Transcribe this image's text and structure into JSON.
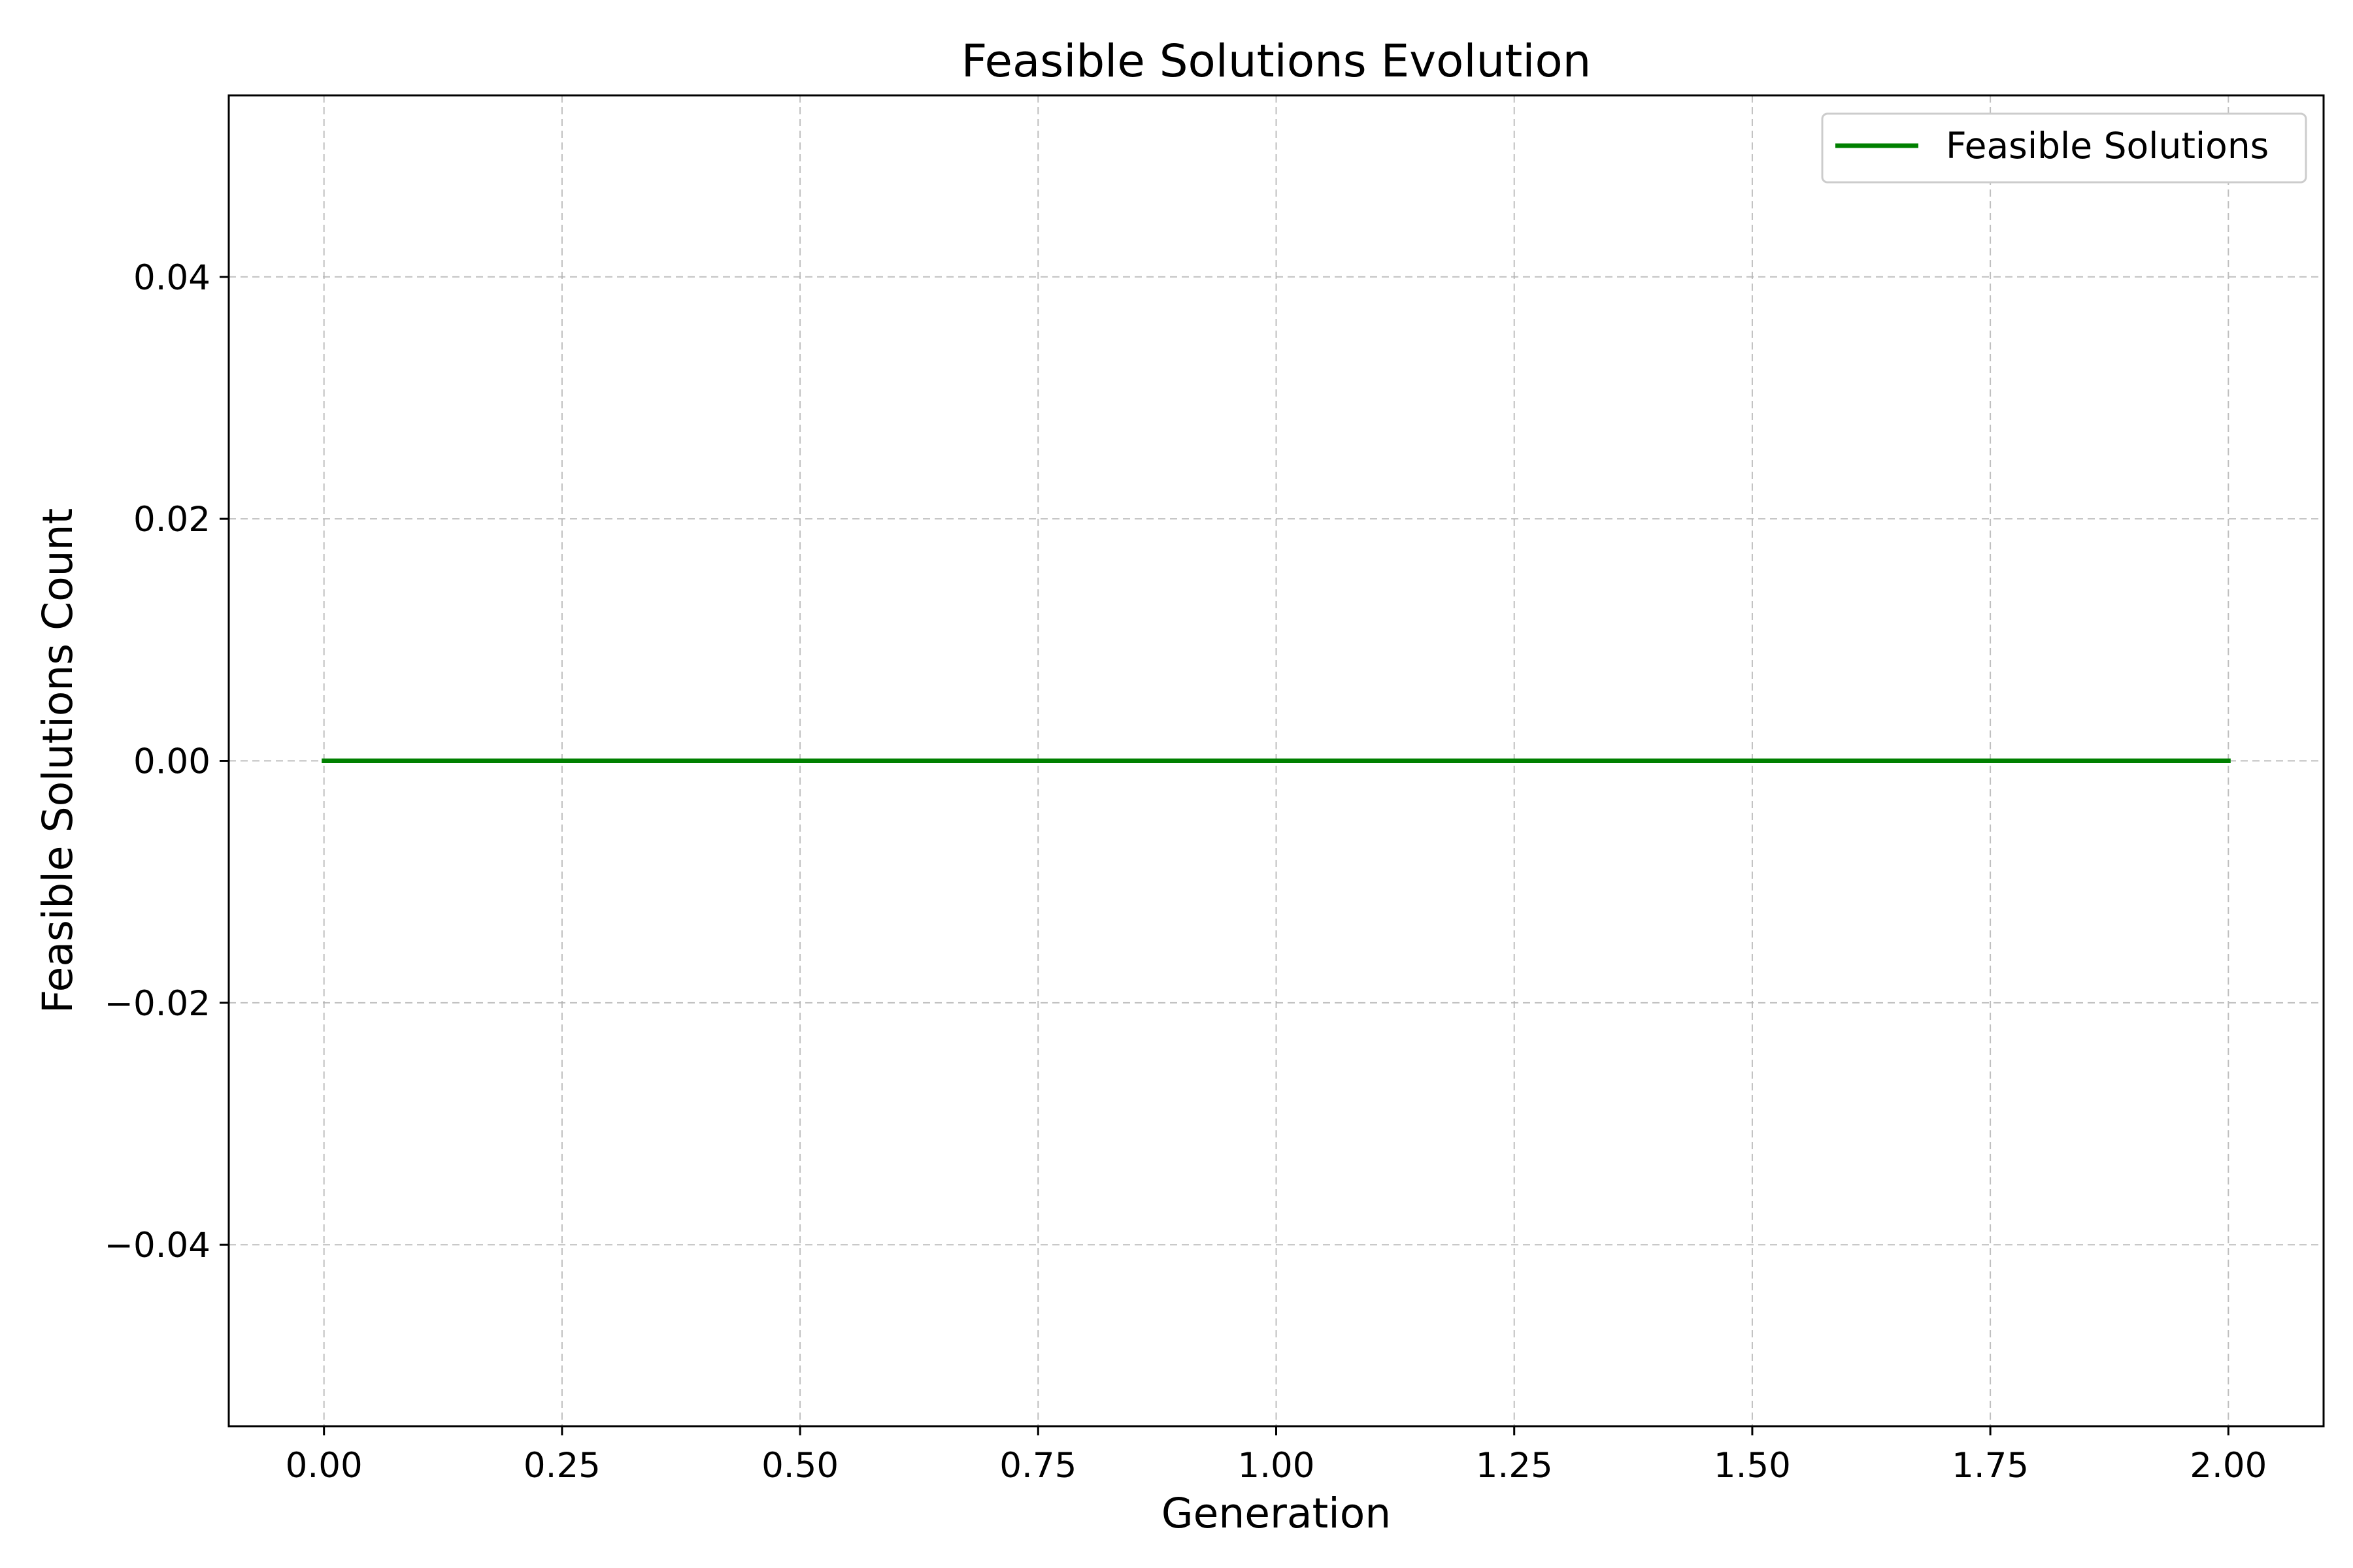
{
  "chart_data": {
    "type": "line",
    "title": "Feasible Solutions Evolution",
    "xlabel": "Generation",
    "ylabel": "Feasible Solutions Count",
    "xlim": [
      -0.1,
      2.1
    ],
    "ylim": [
      -0.055,
      0.055
    ],
    "xticks": [
      0.0,
      0.25,
      0.5,
      0.75,
      1.0,
      1.25,
      1.5,
      1.75,
      2.0
    ],
    "xtick_labels": [
      "0.00",
      "0.25",
      "0.50",
      "0.75",
      "1.00",
      "1.25",
      "1.50",
      "1.75",
      "2.00"
    ],
    "yticks": [
      -0.04,
      -0.02,
      0.0,
      0.02,
      0.04
    ],
    "ytick_labels": [
      "−0.04",
      "−0.02",
      "0.00",
      "0.02",
      "0.04"
    ],
    "grid": true,
    "legend_position": "top-right",
    "series": [
      {
        "name": "Feasible Solutions",
        "color": "#008000",
        "x": [
          0,
          1,
          2
        ],
        "y": [
          0,
          0,
          0
        ]
      }
    ]
  }
}
